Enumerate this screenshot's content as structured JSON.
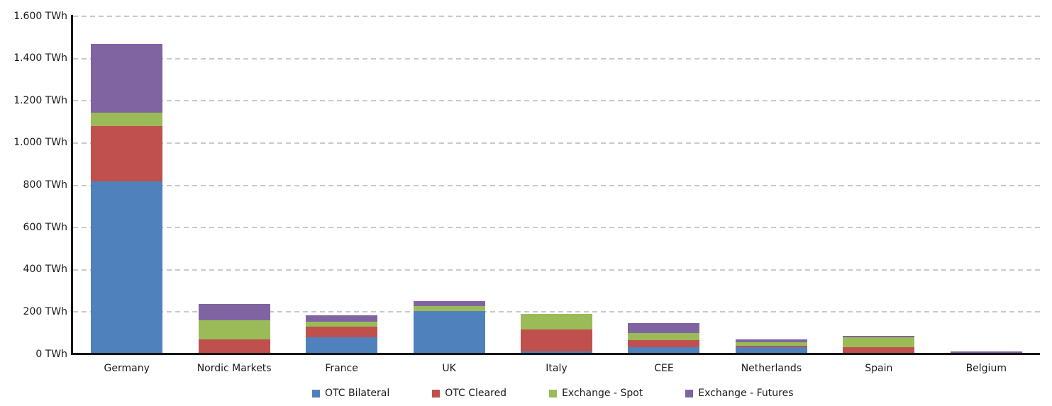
{
  "chart_data": {
    "type": "bar",
    "stacked": true,
    "unit": "TWh",
    "title": "",
    "xlabel": "",
    "ylabel": "",
    "categories": [
      "Germany",
      "Nordic Markets",
      "France",
      "UK",
      "Italy",
      "CEE",
      "Netherlands",
      "Spain",
      "Belgium"
    ],
    "series": [
      {
        "name": "OTC Bilateral",
        "color": "#4F81BD",
        "values": [
          820,
          0,
          80,
          205,
          12,
          35,
          32,
          0,
          8
        ]
      },
      {
        "name": "OTC Cleared",
        "color": "#C0504D",
        "values": [
          260,
          72,
          50,
          0,
          106,
          31,
          8,
          35,
          0
        ]
      },
      {
        "name": "Exchange - Spot",
        "color": "#9BBB59",
        "values": [
          65,
          90,
          25,
          23,
          73,
          34,
          17,
          45,
          0
        ]
      },
      {
        "name": "Exchange - Futures",
        "color": "#8064A2",
        "values": [
          325,
          76,
          31,
          22,
          0,
          48,
          13,
          8,
          7
        ]
      }
    ],
    "totals": [
      1470,
      238,
      186,
      250,
      191,
      148,
      70,
      88,
      15
    ],
    "ylim": [
      0,
      1600
    ],
    "ytick_step": 200,
    "ytick_labels": [
      "0 TWh",
      "200 TWh",
      "400 TWh",
      "600 TWh",
      "800 TWh",
      "1.000 TWh",
      "1.200 TWh",
      "1.400 TWh",
      "1.600 TWh"
    ],
    "grid": "horizontal-dashed",
    "grid_color": "#c9c9c9",
    "axis_color": "#161616",
    "legend_position": "bottom"
  }
}
